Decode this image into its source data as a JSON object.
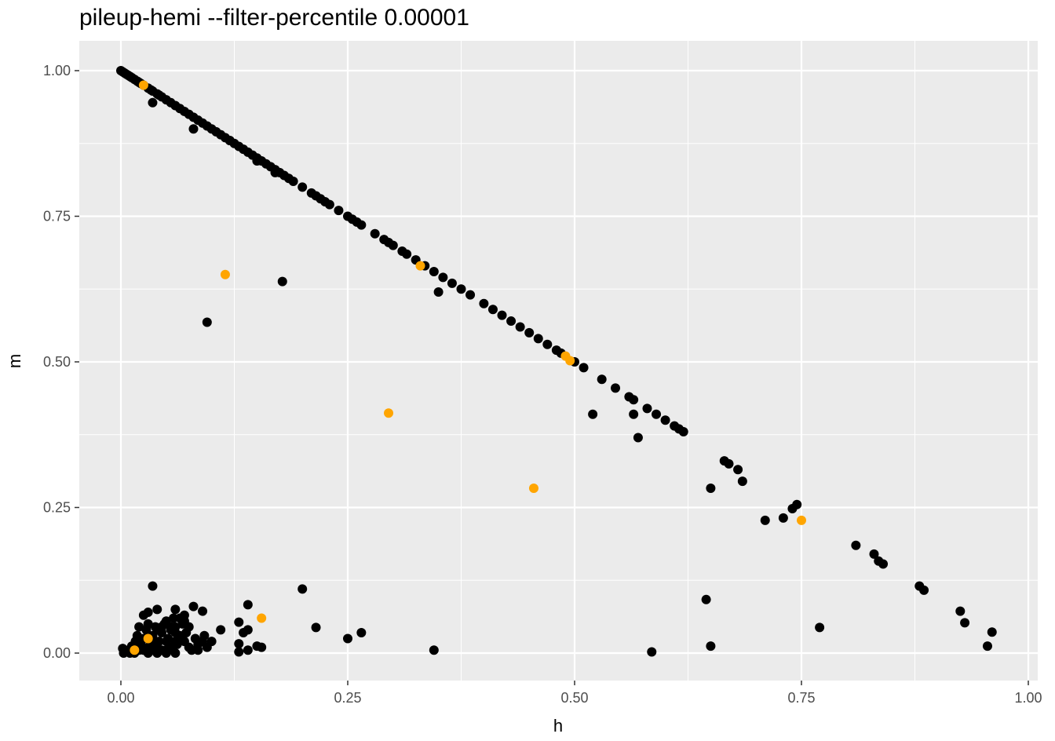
{
  "chart_data": {
    "type": "scatter",
    "title": "pileup-hemi --filter-percentile 0.00001",
    "xlabel": "h",
    "ylabel": "m",
    "xlim": [
      -0.045,
      1.0
    ],
    "ylim": [
      -0.047,
      1.05
    ],
    "x_ticks": [
      0.0,
      0.25,
      0.5,
      0.75,
      1.0
    ],
    "y_ticks": [
      0.0,
      0.25,
      0.5,
      0.75,
      1.0
    ],
    "x_tick_labels": [
      "0.00",
      "0.25",
      "0.50",
      "0.75",
      "1.00"
    ],
    "y_tick_labels": [
      "0.00",
      "0.25",
      "0.50",
      "0.75",
      "1.00"
    ],
    "grid": true,
    "panel_background": "#ebebeb",
    "series": [
      {
        "color": "#000000",
        "points": [
          [
            0.0,
            1.0
          ],
          [
            0.002,
            0.998
          ],
          [
            0.004,
            0.996
          ],
          [
            0.006,
            0.994
          ],
          [
            0.008,
            0.992
          ],
          [
            0.01,
            0.99
          ],
          [
            0.012,
            0.988
          ],
          [
            0.015,
            0.985
          ],
          [
            0.018,
            0.982
          ],
          [
            0.02,
            0.98
          ],
          [
            0.022,
            0.978
          ],
          [
            0.025,
            0.975
          ],
          [
            0.03,
            0.97
          ],
          [
            0.033,
            0.967
          ],
          [
            0.035,
            0.965
          ],
          [
            0.04,
            0.96
          ],
          [
            0.042,
            0.958
          ],
          [
            0.045,
            0.955
          ],
          [
            0.05,
            0.95
          ],
          [
            0.055,
            0.945
          ],
          [
            0.06,
            0.94
          ],
          [
            0.065,
            0.935
          ],
          [
            0.07,
            0.93
          ],
          [
            0.075,
            0.925
          ],
          [
            0.08,
            0.92
          ],
          [
            0.085,
            0.915
          ],
          [
            0.09,
            0.91
          ],
          [
            0.095,
            0.905
          ],
          [
            0.1,
            0.9
          ],
          [
            0.105,
            0.895
          ],
          [
            0.11,
            0.89
          ],
          [
            0.115,
            0.885
          ],
          [
            0.12,
            0.88
          ],
          [
            0.125,
            0.875
          ],
          [
            0.13,
            0.87
          ],
          [
            0.135,
            0.865
          ],
          [
            0.14,
            0.86
          ],
          [
            0.145,
            0.855
          ],
          [
            0.15,
            0.85
          ],
          [
            0.155,
            0.845
          ],
          [
            0.16,
            0.84
          ],
          [
            0.165,
            0.835
          ],
          [
            0.17,
            0.83
          ],
          [
            0.175,
            0.825
          ],
          [
            0.18,
            0.82
          ],
          [
            0.185,
            0.815
          ],
          [
            0.19,
            0.81
          ],
          [
            0.2,
            0.8
          ],
          [
            0.21,
            0.79
          ],
          [
            0.215,
            0.785
          ],
          [
            0.22,
            0.78
          ],
          [
            0.225,
            0.775
          ],
          [
            0.23,
            0.77
          ],
          [
            0.24,
            0.76
          ],
          [
            0.25,
            0.75
          ],
          [
            0.255,
            0.745
          ],
          [
            0.26,
            0.74
          ],
          [
            0.265,
            0.735
          ],
          [
            0.28,
            0.72
          ],
          [
            0.29,
            0.71
          ],
          [
            0.295,
            0.705
          ],
          [
            0.3,
            0.7
          ],
          [
            0.31,
            0.69
          ],
          [
            0.315,
            0.685
          ],
          [
            0.325,
            0.675
          ],
          [
            0.335,
            0.665
          ],
          [
            0.345,
            0.655
          ],
          [
            0.355,
            0.645
          ],
          [
            0.365,
            0.635
          ],
          [
            0.375,
            0.625
          ],
          [
            0.385,
            0.615
          ],
          [
            0.4,
            0.6
          ],
          [
            0.41,
            0.59
          ],
          [
            0.42,
            0.58
          ],
          [
            0.43,
            0.57
          ],
          [
            0.44,
            0.56
          ],
          [
            0.45,
            0.55
          ],
          [
            0.46,
            0.54
          ],
          [
            0.47,
            0.53
          ],
          [
            0.48,
            0.52
          ],
          [
            0.485,
            0.515
          ],
          [
            0.5,
            0.5
          ],
          [
            0.51,
            0.49
          ],
          [
            0.53,
            0.47
          ],
          [
            0.545,
            0.455
          ],
          [
            0.56,
            0.44
          ],
          [
            0.565,
            0.435
          ],
          [
            0.58,
            0.42
          ],
          [
            0.59,
            0.41
          ],
          [
            0.6,
            0.4
          ],
          [
            0.61,
            0.39
          ],
          [
            0.615,
            0.385
          ],
          [
            0.62,
            0.38
          ],
          [
            0.035,
            0.945
          ],
          [
            0.08,
            0.9
          ],
          [
            0.12,
            0.88
          ],
          [
            0.15,
            0.845
          ],
          [
            0.17,
            0.825
          ],
          [
            0.35,
            0.62
          ],
          [
            0.52,
            0.41
          ],
          [
            0.57,
            0.37
          ],
          [
            0.565,
            0.41
          ],
          [
            0.665,
            0.33
          ],
          [
            0.67,
            0.325
          ],
          [
            0.68,
            0.315
          ],
          [
            0.685,
            0.295
          ],
          [
            0.65,
            0.283
          ],
          [
            0.71,
            0.228
          ],
          [
            0.73,
            0.232
          ],
          [
            0.74,
            0.248
          ],
          [
            0.745,
            0.255
          ],
          [
            0.81,
            0.185
          ],
          [
            0.83,
            0.17
          ],
          [
            0.835,
            0.158
          ],
          [
            0.84,
            0.153
          ],
          [
            0.88,
            0.115
          ],
          [
            0.885,
            0.108
          ],
          [
            0.925,
            0.072
          ],
          [
            0.93,
            0.052
          ],
          [
            0.96,
            0.036
          ],
          [
            0.955,
            0.012
          ],
          [
            0.095,
            0.568
          ],
          [
            0.178,
            0.638
          ],
          [
            0.2,
            0.11
          ],
          [
            0.215,
            0.044
          ],
          [
            0.25,
            0.025
          ],
          [
            0.265,
            0.035
          ],
          [
            0.345,
            0.005
          ],
          [
            0.585,
            0.002
          ],
          [
            0.645,
            0.092
          ],
          [
            0.65,
            0.012
          ],
          [
            0.77,
            0.044
          ],
          [
            0.035,
            0.115
          ],
          [
            0.14,
            0.083
          ],
          [
            0.13,
            0.053
          ],
          [
            0.13,
            0.016
          ],
          [
            0.13,
            0.002
          ],
          [
            0.135,
            0.035
          ],
          [
            0.14,
            0.04
          ],
          [
            0.14,
            0.005
          ],
          [
            0.15,
            0.012
          ],
          [
            0.155,
            0.01
          ],
          [
            0.1,
            0.02
          ],
          [
            0.11,
            0.04
          ],
          [
            0.08,
            0.08
          ],
          [
            0.09,
            0.072
          ],
          [
            0.07,
            0.065
          ],
          [
            0.06,
            0.075
          ],
          [
            0.04,
            0.075
          ],
          [
            0.03,
            0.07
          ],
          [
            0.025,
            0.065
          ],
          [
            0.02,
            0.045
          ],
          [
            0.018,
            0.03
          ],
          [
            0.016,
            0.02
          ],
          [
            0.012,
            0.012
          ],
          [
            0.008,
            0.005
          ],
          [
            0.005,
            0.002
          ],
          [
            0.002,
            0.008
          ],
          [
            0.003,
            0.0
          ],
          [
            0.01,
            0.0
          ],
          [
            0.015,
            0.0
          ],
          [
            0.02,
            0.005
          ],
          [
            0.022,
            0.015
          ],
          [
            0.025,
            0.025
          ],
          [
            0.028,
            0.04
          ],
          [
            0.03,
            0.05
          ],
          [
            0.03,
            0.01
          ],
          [
            0.033,
            0.02
          ],
          [
            0.035,
            0.03
          ],
          [
            0.038,
            0.045
          ],
          [
            0.04,
            0.01
          ],
          [
            0.042,
            0.02
          ],
          [
            0.045,
            0.035
          ],
          [
            0.048,
            0.05
          ],
          [
            0.05,
            0.055
          ],
          [
            0.05,
            0.005
          ],
          [
            0.052,
            0.025
          ],
          [
            0.055,
            0.04
          ],
          [
            0.058,
            0.06
          ],
          [
            0.06,
            0.045
          ],
          [
            0.062,
            0.015
          ],
          [
            0.065,
            0.03
          ],
          [
            0.068,
            0.05
          ],
          [
            0.07,
            0.02
          ],
          [
            0.072,
            0.035
          ],
          [
            0.075,
            0.01
          ],
          [
            0.078,
            0.005
          ],
          [
            0.082,
            0.025
          ],
          [
            0.085,
            0.015
          ],
          [
            0.09,
            0.02
          ],
          [
            0.092,
            0.03
          ],
          [
            0.095,
            0.01
          ],
          [
            0.055,
            0.01
          ],
          [
            0.045,
            0.005
          ],
          [
            0.035,
            0.005
          ],
          [
            0.04,
            0.04
          ],
          [
            0.065,
            0.06
          ],
          [
            0.07,
            0.055
          ],
          [
            0.075,
            0.045
          ],
          [
            0.085,
            0.005
          ],
          [
            0.06,
            0.035
          ],
          [
            0.05,
            0.02
          ],
          [
            0.045,
            0.045
          ],
          [
            0.025,
            0.005
          ],
          [
            0.03,
            0.03
          ],
          [
            0.02,
            0.02
          ],
          [
            0.015,
            0.01
          ],
          [
            0.01,
            0.005
          ],
          [
            0.055,
            0.045
          ],
          [
            0.06,
            0.02
          ],
          [
            0.03,
            0.0
          ],
          [
            0.04,
            0.0
          ],
          [
            0.05,
            0.0
          ],
          [
            0.06,
            0.0
          ]
        ]
      },
      {
        "color": "#ffa500",
        "points": [
          [
            0.025,
            0.975
          ],
          [
            0.115,
            0.65
          ],
          [
            0.33,
            0.665
          ],
          [
            0.295,
            0.412
          ],
          [
            0.49,
            0.51
          ],
          [
            0.495,
            0.502
          ],
          [
            0.455,
            0.283
          ],
          [
            0.75,
            0.228
          ],
          [
            0.155,
            0.06
          ],
          [
            0.03,
            0.025
          ],
          [
            0.015,
            0.005
          ]
        ]
      }
    ]
  }
}
